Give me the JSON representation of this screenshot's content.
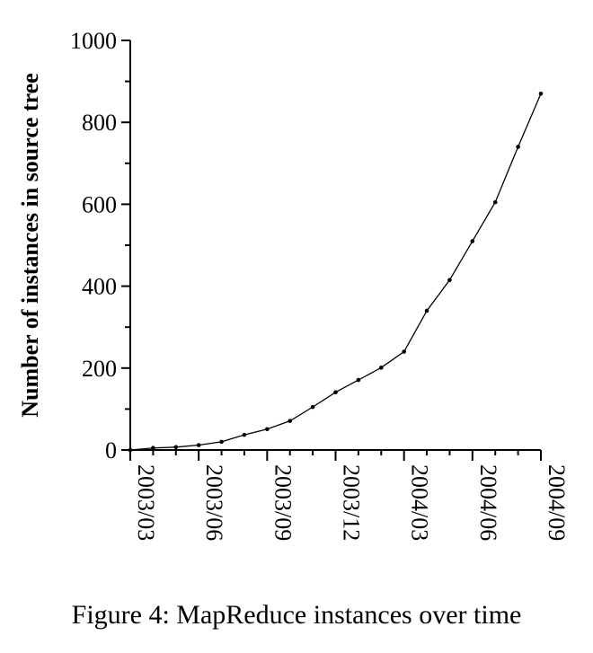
{
  "caption": "Figure 4: MapReduce instances over time",
  "chart_data": {
    "type": "line",
    "title": "",
    "xlabel": "",
    "ylabel": "Number of instances in source tree",
    "x_tick_labels": [
      "2003/03",
      "2003/06",
      "2003/09",
      "2003/12",
      "2004/03",
      "2004/06",
      "2004/09"
    ],
    "y_ticks": [
      0,
      200,
      400,
      600,
      800,
      1000
    ],
    "ylim": [
      0,
      1000
    ],
    "xlim": [
      "2003/03",
      "2004/09"
    ],
    "grid": false,
    "series": [
      {
        "x": [
          "2003/03",
          "2003/04",
          "2003/05",
          "2003/06",
          "2003/07",
          "2003/08",
          "2003/09",
          "2003/10",
          "2003/11",
          "2003/12",
          "2004/01",
          "2004/02",
          "2004/03",
          "2004/04",
          "2004/05",
          "2004/06",
          "2004/07",
          "2004/08",
          "2004/09"
        ],
        "values": [
          0,
          5,
          7,
          12,
          20,
          37,
          51,
          71,
          105,
          141,
          171,
          201,
          240,
          340,
          415,
          510,
          605,
          740,
          870
        ]
      }
    ]
  }
}
